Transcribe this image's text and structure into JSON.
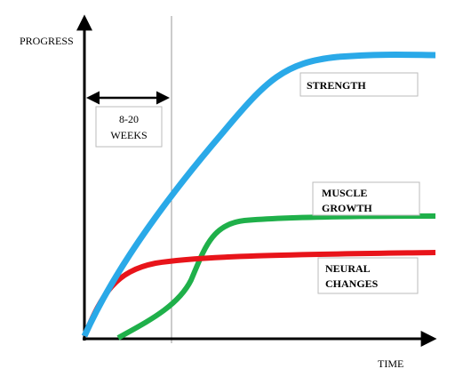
{
  "axes": {
    "y_label": "PROGRESS",
    "x_label": "TIME"
  },
  "period": {
    "lines": [
      "8-20",
      "WEEKS"
    ]
  },
  "curves": [
    {
      "lines": [
        "STRENGTH"
      ]
    },
    {
      "lines": [
        "MUSCLE",
        "GROWTH"
      ]
    },
    {
      "lines": [
        "NEURAL",
        "CHANGES"
      ]
    }
  ]
}
